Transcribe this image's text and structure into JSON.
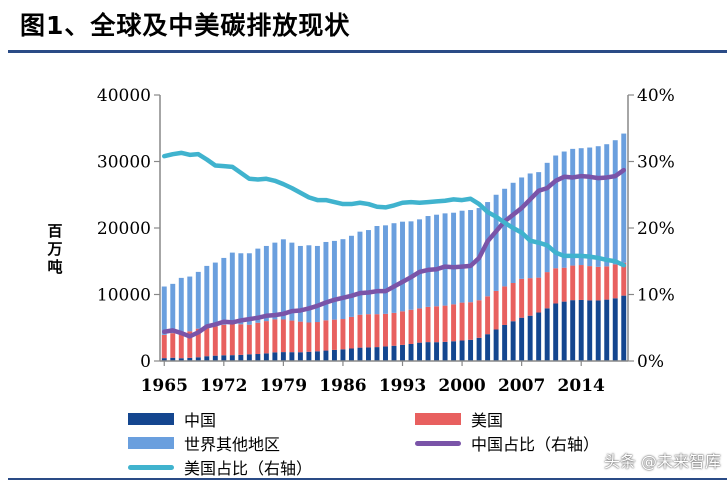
{
  "title": "图1、全球及中美碳排放现状",
  "watermark": "头条 @未来智库",
  "chart_data": {
    "type": "bar",
    "stacked": true,
    "years": [
      1965,
      1966,
      1967,
      1968,
      1969,
      1970,
      1971,
      1972,
      1973,
      1974,
      1975,
      1976,
      1977,
      1978,
      1979,
      1980,
      1981,
      1982,
      1983,
      1984,
      1985,
      1986,
      1987,
      1988,
      1989,
      1990,
      1991,
      1992,
      1993,
      1994,
      1995,
      1996,
      1997,
      1998,
      1999,
      2000,
      2001,
      2002,
      2003,
      2004,
      2005,
      2006,
      2007,
      2008,
      2009,
      2010,
      2011,
      2012,
      2013,
      2014,
      2015,
      2016,
      2017,
      2018,
      2019
    ],
    "x_tick_labels": [
      "1965",
      "1972",
      "1979",
      "1986",
      "1993",
      "2000",
      "2007",
      "2014"
    ],
    "y_left": {
      "label": "百万吨",
      "ylim": [
        0,
        40000
      ],
      "ticks": [
        "0",
        "10000",
        "20000",
        "30000",
        "40000"
      ]
    },
    "y_right": {
      "ylim": [
        0,
        40
      ],
      "ticks": [
        "0%",
        "10%",
        "20%",
        "30%",
        "40%"
      ]
    },
    "series": [
      {
        "name": "中国",
        "kind": "bar",
        "color": "#14468f",
        "values": [
          430,
          490,
          420,
          470,
          560,
          720,
          800,
          860,
          880,
          920,
          1010,
          1050,
          1150,
          1300,
          1340,
          1330,
          1320,
          1390,
          1460,
          1570,
          1670,
          1760,
          1880,
          2010,
          2040,
          2090,
          2190,
          2290,
          2420,
          2560,
          2760,
          2840,
          2830,
          2880,
          2970,
          3080,
          3190,
          3490,
          4030,
          4740,
          5420,
          5980,
          6510,
          6810,
          7290,
          7920,
          8650,
          8930,
          9150,
          9180,
          9120,
          9110,
          9230,
          9430,
          9830
        ]
      },
      {
        "name": "美国",
        "kind": "bar",
        "color": "#e8605f",
        "values": [
          3500,
          3700,
          3800,
          4000,
          4300,
          4400,
          4400,
          4600,
          4800,
          4600,
          4450,
          4700,
          4850,
          4950,
          4900,
          4750,
          4600,
          4400,
          4400,
          4550,
          4550,
          4550,
          4750,
          4950,
          5000,
          4950,
          4900,
          4950,
          5050,
          5150,
          5150,
          5300,
          5400,
          5450,
          5550,
          5700,
          5650,
          5650,
          5700,
          5800,
          5800,
          5750,
          5850,
          5650,
          5250,
          5450,
          5300,
          5100,
          5200,
          5250,
          5150,
          5050,
          5000,
          5100,
          4950
        ]
      },
      {
        "name": "世界其他地区",
        "kind": "bar",
        "color": "#6a9fde",
        "values": [
          7270,
          7410,
          8280,
          8230,
          8540,
          9180,
          9600,
          10040,
          10620,
          10680,
          10740,
          11150,
          11300,
          11550,
          12060,
          11720,
          11380,
          11610,
          11440,
          11780,
          11840,
          12010,
          12200,
          12490,
          12650,
          13260,
          13310,
          13480,
          13480,
          13290,
          13390,
          13660,
          13770,
          13870,
          13780,
          13820,
          13860,
          13860,
          14170,
          14460,
          14680,
          15070,
          15240,
          15740,
          15860,
          16430,
          16950,
          17470,
          17550,
          17570,
          17830,
          18140,
          18370,
          18670,
          19420
        ]
      },
      {
        "name": "中国占比（右轴）",
        "kind": "line",
        "axis": "right",
        "color": "#7a54a8",
        "values": [
          4.4,
          4.6,
          4.2,
          3.7,
          4.3,
          5.2,
          5.5,
          5.9,
          5.8,
          6.1,
          6.3,
          6.5,
          6.8,
          6.9,
          7.1,
          7.5,
          7.6,
          7.9,
          8.3,
          8.8,
          9.2,
          9.5,
          9.8,
          10.2,
          10.3,
          10.5,
          10.5,
          11.2,
          11.9,
          12.6,
          13.4,
          13.7,
          13.8,
          14.2,
          14.1,
          14.2,
          14.3,
          15.5,
          18.0,
          19.5,
          21.0,
          22.0,
          23.0,
          24.3,
          25.6,
          26.0,
          27.1,
          27.7,
          27.6,
          27.8,
          27.7,
          27.5,
          27.6,
          27.8,
          28.7
        ]
      },
      {
        "name": "美国占比（右轴）",
        "kind": "line",
        "axis": "right",
        "color": "#40b3ce",
        "values": [
          30.8,
          31.1,
          31.3,
          31.0,
          31.1,
          30.3,
          29.4,
          29.3,
          29.2,
          28.3,
          27.4,
          27.3,
          27.4,
          27.1,
          26.6,
          26.0,
          25.3,
          24.6,
          24.2,
          24.2,
          23.9,
          23.6,
          23.6,
          23.8,
          23.6,
          23.2,
          23.1,
          23.4,
          23.8,
          23.9,
          23.8,
          23.9,
          24.0,
          24.1,
          24.3,
          24.2,
          24.4,
          23.6,
          22.4,
          21.7,
          20.8,
          20.0,
          19.3,
          18.1,
          17.8,
          17.4,
          16.3,
          15.8,
          15.8,
          15.8,
          15.7,
          15.5,
          15.2,
          15.0,
          14.4
        ]
      }
    ]
  }
}
